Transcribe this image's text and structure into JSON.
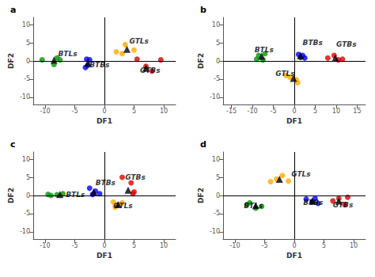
{
  "chart_data": [
    {
      "type": "scatter",
      "title": "a",
      "xlabel": "DF1",
      "ylabel": "DF2",
      "xlim": [
        -12,
        12
      ],
      "ylim": [
        -12,
        12
      ],
      "xticks": [
        -10,
        -5,
        0,
        5,
        10
      ],
      "yticks": [
        -10,
        -5,
        0,
        5,
        10
      ],
      "grid": false,
      "series": [
        {
          "color": "#009900",
          "marker": "circle",
          "x": [
            -10.5,
            -8.5,
            -7.5,
            -8.0
          ],
          "values": [
            0.3,
            -1.0,
            0.3,
            0.8
          ]
        },
        {
          "color": "#0000ff",
          "marker": "circle",
          "x": [
            -3.0,
            -2.5,
            -2.8,
            -3.2
          ],
          "values": [
            0.5,
            0.3,
            -1.2,
            -1.8
          ]
        },
        {
          "color": "#ffaa00",
          "marker": "circle",
          "x": [
            2.0,
            3.0,
            3.5,
            5.0
          ],
          "values": [
            2.5,
            2.0,
            4.5,
            3.0
          ]
        },
        {
          "color": "#dd0000",
          "marker": "circle",
          "x": [
            5.5,
            7.0,
            8.0,
            9.5
          ],
          "values": [
            0.5,
            -1.5,
            -2.8,
            0.3
          ]
        },
        {
          "color": "#000000",
          "marker": "triangle",
          "x": [
            -8.5,
            -2.8,
            3.8,
            7.0
          ],
          "values": [
            0.2,
            -0.6,
            3.2,
            -2.0
          ]
        }
      ],
      "annotations": [
        {
          "text": "BTLs",
          "x": -7.8,
          "y": 0.9
        },
        {
          "text": "BTBs",
          "x": -2.5,
          "y": -2.0
        },
        {
          "text": "GTLs",
          "x": 4.2,
          "y": 4.5
        },
        {
          "text": "GTBs",
          "x": 6.0,
          "y": -3.5
        }
      ]
    },
    {
      "type": "scatter",
      "title": "b",
      "xlabel": "DF1",
      "ylabel": "DF2",
      "xlim": [
        -17,
        17
      ],
      "ylim": [
        -12,
        12
      ],
      "xticks": [
        -15,
        -10,
        -5,
        0,
        5,
        10,
        15
      ],
      "yticks": [
        -10,
        -5,
        0,
        5,
        10
      ],
      "grid": false,
      "series": [
        {
          "color": "#009900",
          "marker": "circle",
          "x": [
            -8.5,
            -7.0,
            -7.5,
            -9.0
          ],
          "values": [
            1.5,
            2.0,
            0.3,
            0.5
          ]
        },
        {
          "color": "#0000ff",
          "marker": "circle",
          "x": [
            1.0,
            2.0,
            2.5,
            1.5
          ],
          "values": [
            1.8,
            1.5,
            0.8,
            1.0
          ]
        },
        {
          "color": "#ffaa00",
          "marker": "circle",
          "x": [
            -2.0,
            -1.0,
            0.5,
            0.8
          ],
          "values": [
            -4.0,
            -4.5,
            -5.2,
            -6.0
          ]
        },
        {
          "color": "#dd0000",
          "marker": "circle",
          "x": [
            8.0,
            9.5,
            10.5,
            11.5
          ],
          "values": [
            0.8,
            1.5,
            0.3,
            0.5
          ]
        },
        {
          "color": "#000000",
          "marker": "triangle",
          "x": [
            -7.8,
            1.5,
            -0.2,
            9.8
          ],
          "values": [
            1.3,
            1.5,
            -4.8,
            0.8
          ]
        }
      ],
      "annotations": [
        {
          "text": "BTLs",
          "x": -9.5,
          "y": 2.0
        },
        {
          "text": "BTBs",
          "x": 2.0,
          "y": 4.0
        },
        {
          "text": "GTLs",
          "x": -4.5,
          "y": -4.5
        },
        {
          "text": "GTBs",
          "x": 10.0,
          "y": 3.5
        }
      ]
    },
    {
      "type": "scatter",
      "title": "c",
      "xlabel": "DF1",
      "ylabel": "DF2",
      "xlim": [
        -12,
        12
      ],
      "ylim": [
        -12,
        12
      ],
      "xticks": [
        -10,
        -5,
        0,
        5,
        10
      ],
      "yticks": [
        -10,
        -5,
        0,
        5,
        10
      ],
      "grid": false,
      "series": [
        {
          "color": "#009900",
          "marker": "circle",
          "x": [
            -9.5,
            -8.0,
            -7.0,
            -9.0
          ],
          "values": [
            0.3,
            0.2,
            0.5,
            0.0
          ]
        },
        {
          "color": "#0000ff",
          "marker": "circle",
          "x": [
            -2.5,
            -1.5,
            -0.8,
            -2.0
          ],
          "values": [
            2.0,
            1.2,
            0.5,
            0.3
          ]
        },
        {
          "color": "#ffaa00",
          "marker": "circle",
          "x": [
            1.5,
            2.5,
            1.8,
            3.0
          ],
          "values": [
            -1.8,
            -2.5,
            -3.2,
            -2.0
          ]
        },
        {
          "color": "#dd0000",
          "marker": "circle",
          "x": [
            3.0,
            4.5,
            4.8,
            5.0
          ],
          "values": [
            5.0,
            3.5,
            0.5,
            1.0
          ]
        },
        {
          "color": "#000000",
          "marker": "triangle",
          "x": [
            -7.5,
            -1.8,
            2.3,
            4.0
          ],
          "values": [
            0.3,
            1.0,
            -2.5,
            1.5
          ]
        }
      ],
      "annotations": [
        {
          "text": "BTLs",
          "x": -6.5,
          "y": -0.8
        },
        {
          "text": "BTBs",
          "x": -1.5,
          "y": 2.5
        },
        {
          "text": "GTLs",
          "x": 1.5,
          "y": -3.8
        },
        {
          "text": "GTBs",
          "x": 3.5,
          "y": 4.0
        }
      ]
    },
    {
      "type": "scatter",
      "title": "d",
      "xlabel": "DF1",
      "ylabel": "DF2",
      "xlim": [
        -12,
        12
      ],
      "ylim": [
        -12,
        12
      ],
      "xticks": [
        -10,
        -5,
        0,
        5,
        10
      ],
      "yticks": [
        -10,
        -5,
        0,
        5,
        10
      ],
      "grid": false,
      "series": [
        {
          "color": "#ffaa00",
          "marker": "circle",
          "x": [
            -3.0,
            -2.0,
            -1.0,
            -4.0
          ],
          "values": [
            4.5,
            5.5,
            4.0,
            3.8
          ]
        },
        {
          "color": "#009900",
          "marker": "circle",
          "x": [
            -8.0,
            -6.5,
            -7.5,
            -5.5
          ],
          "values": [
            -2.5,
            -3.5,
            -2.0,
            -3.0
          ]
        },
        {
          "color": "#0000ff",
          "marker": "circle",
          "x": [
            2.0,
            3.0,
            4.0,
            3.5
          ],
          "values": [
            -1.0,
            -1.8,
            -2.2,
            -0.8
          ]
        },
        {
          "color": "#dd0000",
          "marker": "circle",
          "x": [
            6.5,
            7.5,
            8.5,
            9.0
          ],
          "values": [
            -1.5,
            -0.8,
            -2.5,
            -0.5
          ]
        },
        {
          "color": "#000000",
          "marker": "triangle",
          "x": [
            -2.5,
            -6.5,
            3.0,
            7.5
          ],
          "values": [
            4.5,
            -2.8,
            -1.5,
            -1.5
          ]
        }
      ],
      "annotations": [
        {
          "text": "GTLs",
          "x": -0.5,
          "y": 5.0
        },
        {
          "text": "BTLs",
          "x": -8.5,
          "y": -3.8
        },
        {
          "text": "BTBs",
          "x": 1.5,
          "y": -3.0
        },
        {
          "text": "GTBs",
          "x": 6.5,
          "y": -3.5
        }
      ]
    }
  ]
}
